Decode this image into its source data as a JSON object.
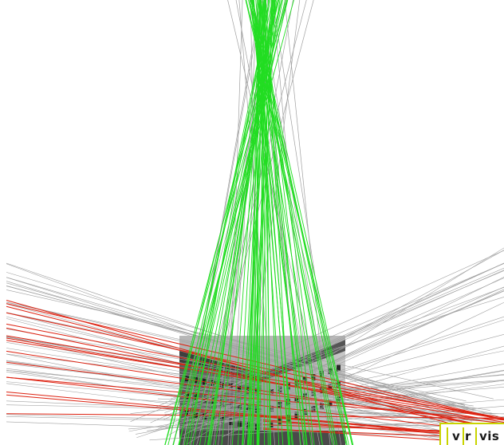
{
  "scene": {
    "description_colors": {
      "vertical_lines": "#22dd22",
      "horizontal_lines_red": "#dd2211",
      "other_lines": "#a0a0a0",
      "background": "#ffffff"
    },
    "vanishing_point_name": "vertical-vanishing-point"
  },
  "logo": {
    "part1": "v r",
    "part2": "vis",
    "accent_color": "#c9d400"
  }
}
